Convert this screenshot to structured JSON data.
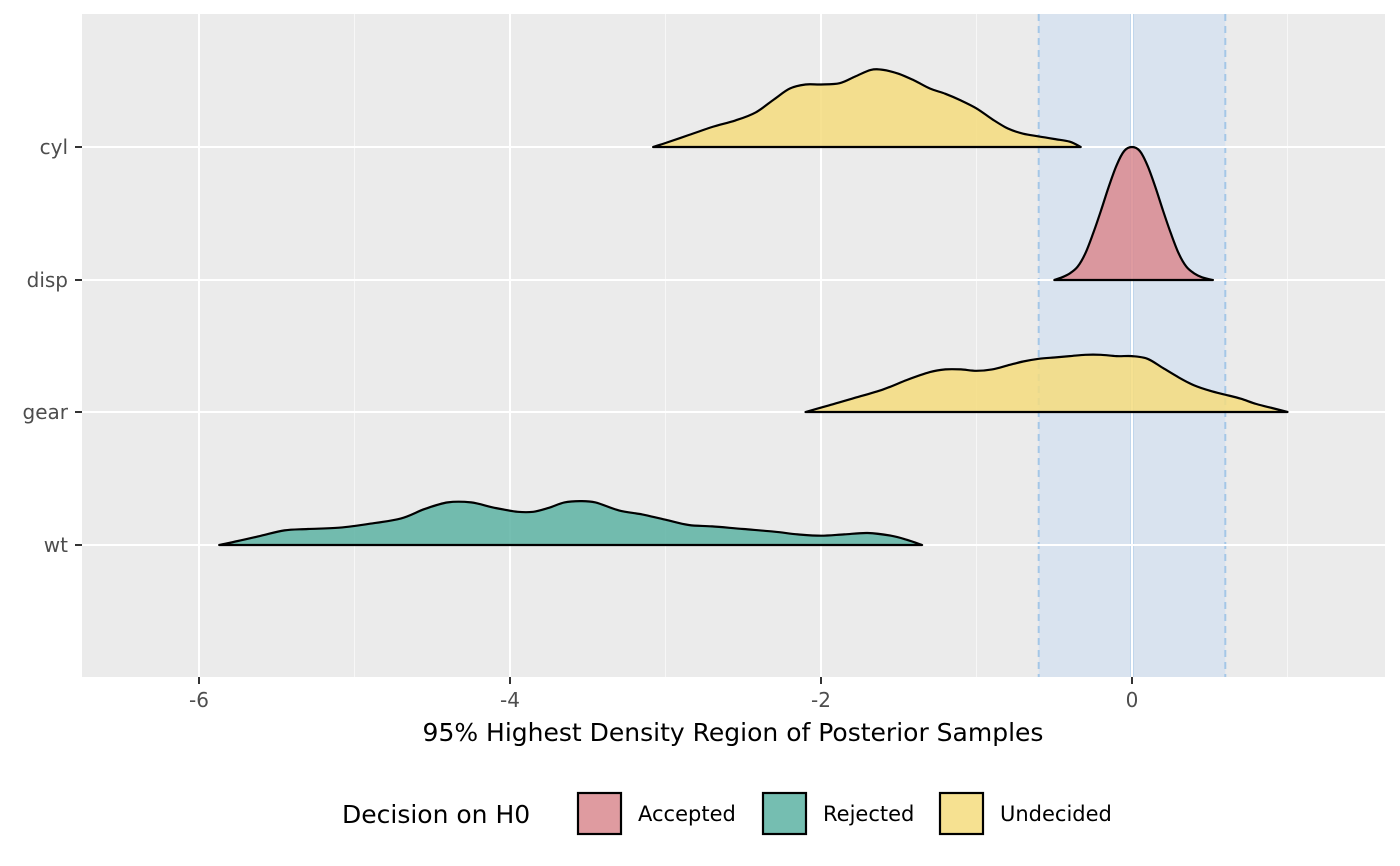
{
  "chart_data": {
    "type": "ridgeline-density",
    "xlabel": "95% Highest Density Region of Posterior Samples",
    "ylabel": "",
    "xlim": [
      -6.78,
      1.63
    ],
    "x_ticks": [
      -6,
      -4,
      -2,
      0
    ],
    "x_tick_labels": [
      "-6",
      "-4",
      "-2",
      "0"
    ],
    "categories": [
      "cyl",
      "disp",
      "gear",
      "wt"
    ],
    "rope": {
      "lower": -0.6,
      "upper": 0.6,
      "reference_line": 0,
      "fill_color": "#d9e3ef",
      "line_color": "#9dc3e6"
    },
    "grid": true,
    "legend": {
      "title": "Decision on H0",
      "position": "bottom",
      "items": [
        {
          "label": "Accepted",
          "color": "#d98a8f"
        },
        {
          "label": "Rejected",
          "color": "#5db3a3"
        },
        {
          "label": "Undecided",
          "color": "#f5dc7e"
        }
      ]
    },
    "series": [
      {
        "name": "cyl",
        "decision": "Undecided",
        "points": [
          [
            -3.08,
            0.0
          ],
          [
            -3.0,
            0.03
          ],
          [
            -2.85,
            0.09
          ],
          [
            -2.7,
            0.15
          ],
          [
            -2.55,
            0.2
          ],
          [
            -2.42,
            0.26
          ],
          [
            -2.3,
            0.36
          ],
          [
            -2.2,
            0.44
          ],
          [
            -2.1,
            0.47
          ],
          [
            -2.0,
            0.47
          ],
          [
            -1.88,
            0.48
          ],
          [
            -1.78,
            0.53
          ],
          [
            -1.68,
            0.58
          ],
          [
            -1.6,
            0.58
          ],
          [
            -1.5,
            0.55
          ],
          [
            -1.4,
            0.5
          ],
          [
            -1.3,
            0.44
          ],
          [
            -1.2,
            0.4
          ],
          [
            -1.1,
            0.35
          ],
          [
            -1.0,
            0.29
          ],
          [
            -0.9,
            0.21
          ],
          [
            -0.8,
            0.14
          ],
          [
            -0.7,
            0.1
          ],
          [
            -0.6,
            0.08
          ],
          [
            -0.5,
            0.06
          ],
          [
            -0.4,
            0.04
          ],
          [
            -0.33,
            0.0
          ]
        ]
      },
      {
        "name": "disp",
        "decision": "Accepted",
        "points": [
          [
            -0.5,
            0.0
          ],
          [
            -0.45,
            0.02
          ],
          [
            -0.4,
            0.05
          ],
          [
            -0.35,
            0.1
          ],
          [
            -0.3,
            0.2
          ],
          [
            -0.25,
            0.35
          ],
          [
            -0.2,
            0.52
          ],
          [
            -0.15,
            0.7
          ],
          [
            -0.1,
            0.86
          ],
          [
            -0.05,
            0.97
          ],
          [
            0.0,
            1.0
          ],
          [
            0.05,
            0.97
          ],
          [
            0.1,
            0.86
          ],
          [
            0.15,
            0.7
          ],
          [
            0.2,
            0.52
          ],
          [
            0.25,
            0.35
          ],
          [
            0.3,
            0.2
          ],
          [
            0.35,
            0.1
          ],
          [
            0.4,
            0.05
          ],
          [
            0.45,
            0.02
          ],
          [
            0.52,
            0.0
          ]
        ]
      },
      {
        "name": "gear",
        "decision": "Undecided",
        "points": [
          [
            -2.1,
            0.0
          ],
          [
            -1.95,
            0.05
          ],
          [
            -1.8,
            0.1
          ],
          [
            -1.6,
            0.17
          ],
          [
            -1.45,
            0.24
          ],
          [
            -1.3,
            0.3
          ],
          [
            -1.2,
            0.32
          ],
          [
            -1.1,
            0.32
          ],
          [
            -1.0,
            0.31
          ],
          [
            -0.9,
            0.32
          ],
          [
            -0.8,
            0.35
          ],
          [
            -0.7,
            0.38
          ],
          [
            -0.6,
            0.4
          ],
          [
            -0.5,
            0.41
          ],
          [
            -0.4,
            0.42
          ],
          [
            -0.3,
            0.43
          ],
          [
            -0.2,
            0.43
          ],
          [
            -0.1,
            0.42
          ],
          [
            0.0,
            0.42
          ],
          [
            0.1,
            0.4
          ],
          [
            0.2,
            0.33
          ],
          [
            0.3,
            0.26
          ],
          [
            0.4,
            0.2
          ],
          [
            0.5,
            0.16
          ],
          [
            0.6,
            0.13
          ],
          [
            0.7,
            0.1
          ],
          [
            0.8,
            0.06
          ],
          [
            0.9,
            0.03
          ],
          [
            1.0,
            0.0
          ]
        ]
      },
      {
        "name": "wt",
        "decision": "Rejected",
        "points": [
          [
            -5.87,
            0.0
          ],
          [
            -5.75,
            0.03
          ],
          [
            -5.6,
            0.07
          ],
          [
            -5.45,
            0.11
          ],
          [
            -5.3,
            0.12
          ],
          [
            -5.1,
            0.13
          ],
          [
            -4.9,
            0.16
          ],
          [
            -4.7,
            0.2
          ],
          [
            -4.55,
            0.27
          ],
          [
            -4.4,
            0.32
          ],
          [
            -4.25,
            0.32
          ],
          [
            -4.1,
            0.28
          ],
          [
            -3.95,
            0.25
          ],
          [
            -3.85,
            0.25
          ],
          [
            -3.75,
            0.28
          ],
          [
            -3.65,
            0.32
          ],
          [
            -3.55,
            0.33
          ],
          [
            -3.45,
            0.32
          ],
          [
            -3.3,
            0.26
          ],
          [
            -3.15,
            0.23
          ],
          [
            -3.0,
            0.19
          ],
          [
            -2.85,
            0.15
          ],
          [
            -2.7,
            0.14
          ],
          [
            -2.5,
            0.12
          ],
          [
            -2.3,
            0.1
          ],
          [
            -2.15,
            0.08
          ],
          [
            -2.0,
            0.07
          ],
          [
            -1.85,
            0.08
          ],
          [
            -1.7,
            0.09
          ],
          [
            -1.55,
            0.07
          ],
          [
            -1.45,
            0.04
          ],
          [
            -1.35,
            0.0
          ]
        ]
      }
    ]
  }
}
